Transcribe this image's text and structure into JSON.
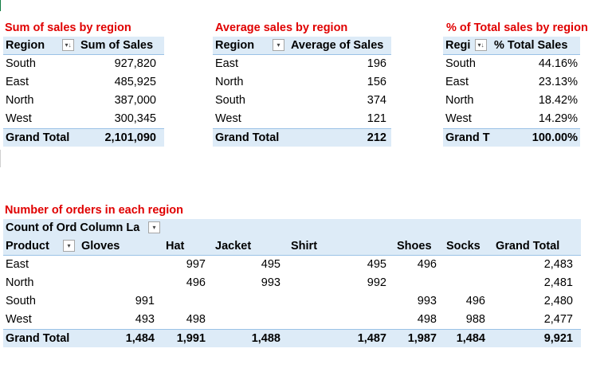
{
  "pivot_sum": {
    "title": "Sum of sales by region",
    "headers": [
      "Region",
      "Sum of Sales"
    ],
    "sort_icon": "sort-filter-icon",
    "rows": [
      {
        "label": "South",
        "value": "927,820"
      },
      {
        "label": "East",
        "value": "485,925"
      },
      {
        "label": "North",
        "value": "387,000"
      },
      {
        "label": "West",
        "value": "300,345"
      }
    ],
    "total": {
      "label": "Grand Total",
      "value": "2,101,090"
    }
  },
  "pivot_avg": {
    "title": "Average sales by region",
    "headers": [
      "Region",
      "Average of Sales"
    ],
    "dropdown_icon": "dropdown-arrow-icon",
    "rows": [
      {
        "label": "East",
        "value": "196"
      },
      {
        "label": "North",
        "value": "156"
      },
      {
        "label": "South",
        "value": "374"
      },
      {
        "label": "West",
        "value": "121"
      }
    ],
    "total": {
      "label": "Grand Total",
      "value": "212"
    }
  },
  "pivot_pct": {
    "title": "% of Total sales by region",
    "headers": [
      "Regi",
      "% Total Sales"
    ],
    "sort_icon": "sort-filter-icon",
    "rows": [
      {
        "label": "South",
        "value": "44.16%"
      },
      {
        "label": "East",
        "value": "23.13%"
      },
      {
        "label": "North",
        "value": "18.42%"
      },
      {
        "label": "West",
        "value": "14.29%"
      }
    ],
    "total": {
      "label": "Grand T",
      "value": "100.00%"
    }
  },
  "pivot_orders": {
    "title": "Number of orders in each region",
    "header_top": "Count of Ord Column La",
    "row_header": "Product",
    "columns": [
      "Gloves",
      "Hat",
      "Jacket",
      "Shirt",
      "Shoes",
      "Socks",
      "Grand Total"
    ],
    "rows": [
      {
        "label": "East",
        "values": [
          "",
          "997",
          "495",
          "495",
          "496",
          "",
          "2,483"
        ]
      },
      {
        "label": "North",
        "values": [
          "",
          "496",
          "993",
          "992",
          "",
          "",
          "2,481"
        ]
      },
      {
        "label": "South",
        "values": [
          "991",
          "",
          "",
          "",
          "993",
          "496",
          "2,480"
        ]
      },
      {
        "label": "West",
        "values": [
          "493",
          "498",
          "",
          "",
          "498",
          "988",
          "2,477"
        ]
      }
    ],
    "total": {
      "label": "Grand Total",
      "values": [
        "1,484",
        "1,991",
        "1,488",
        "1,487",
        "1,987",
        "1,484",
        "9,921"
      ]
    }
  }
}
